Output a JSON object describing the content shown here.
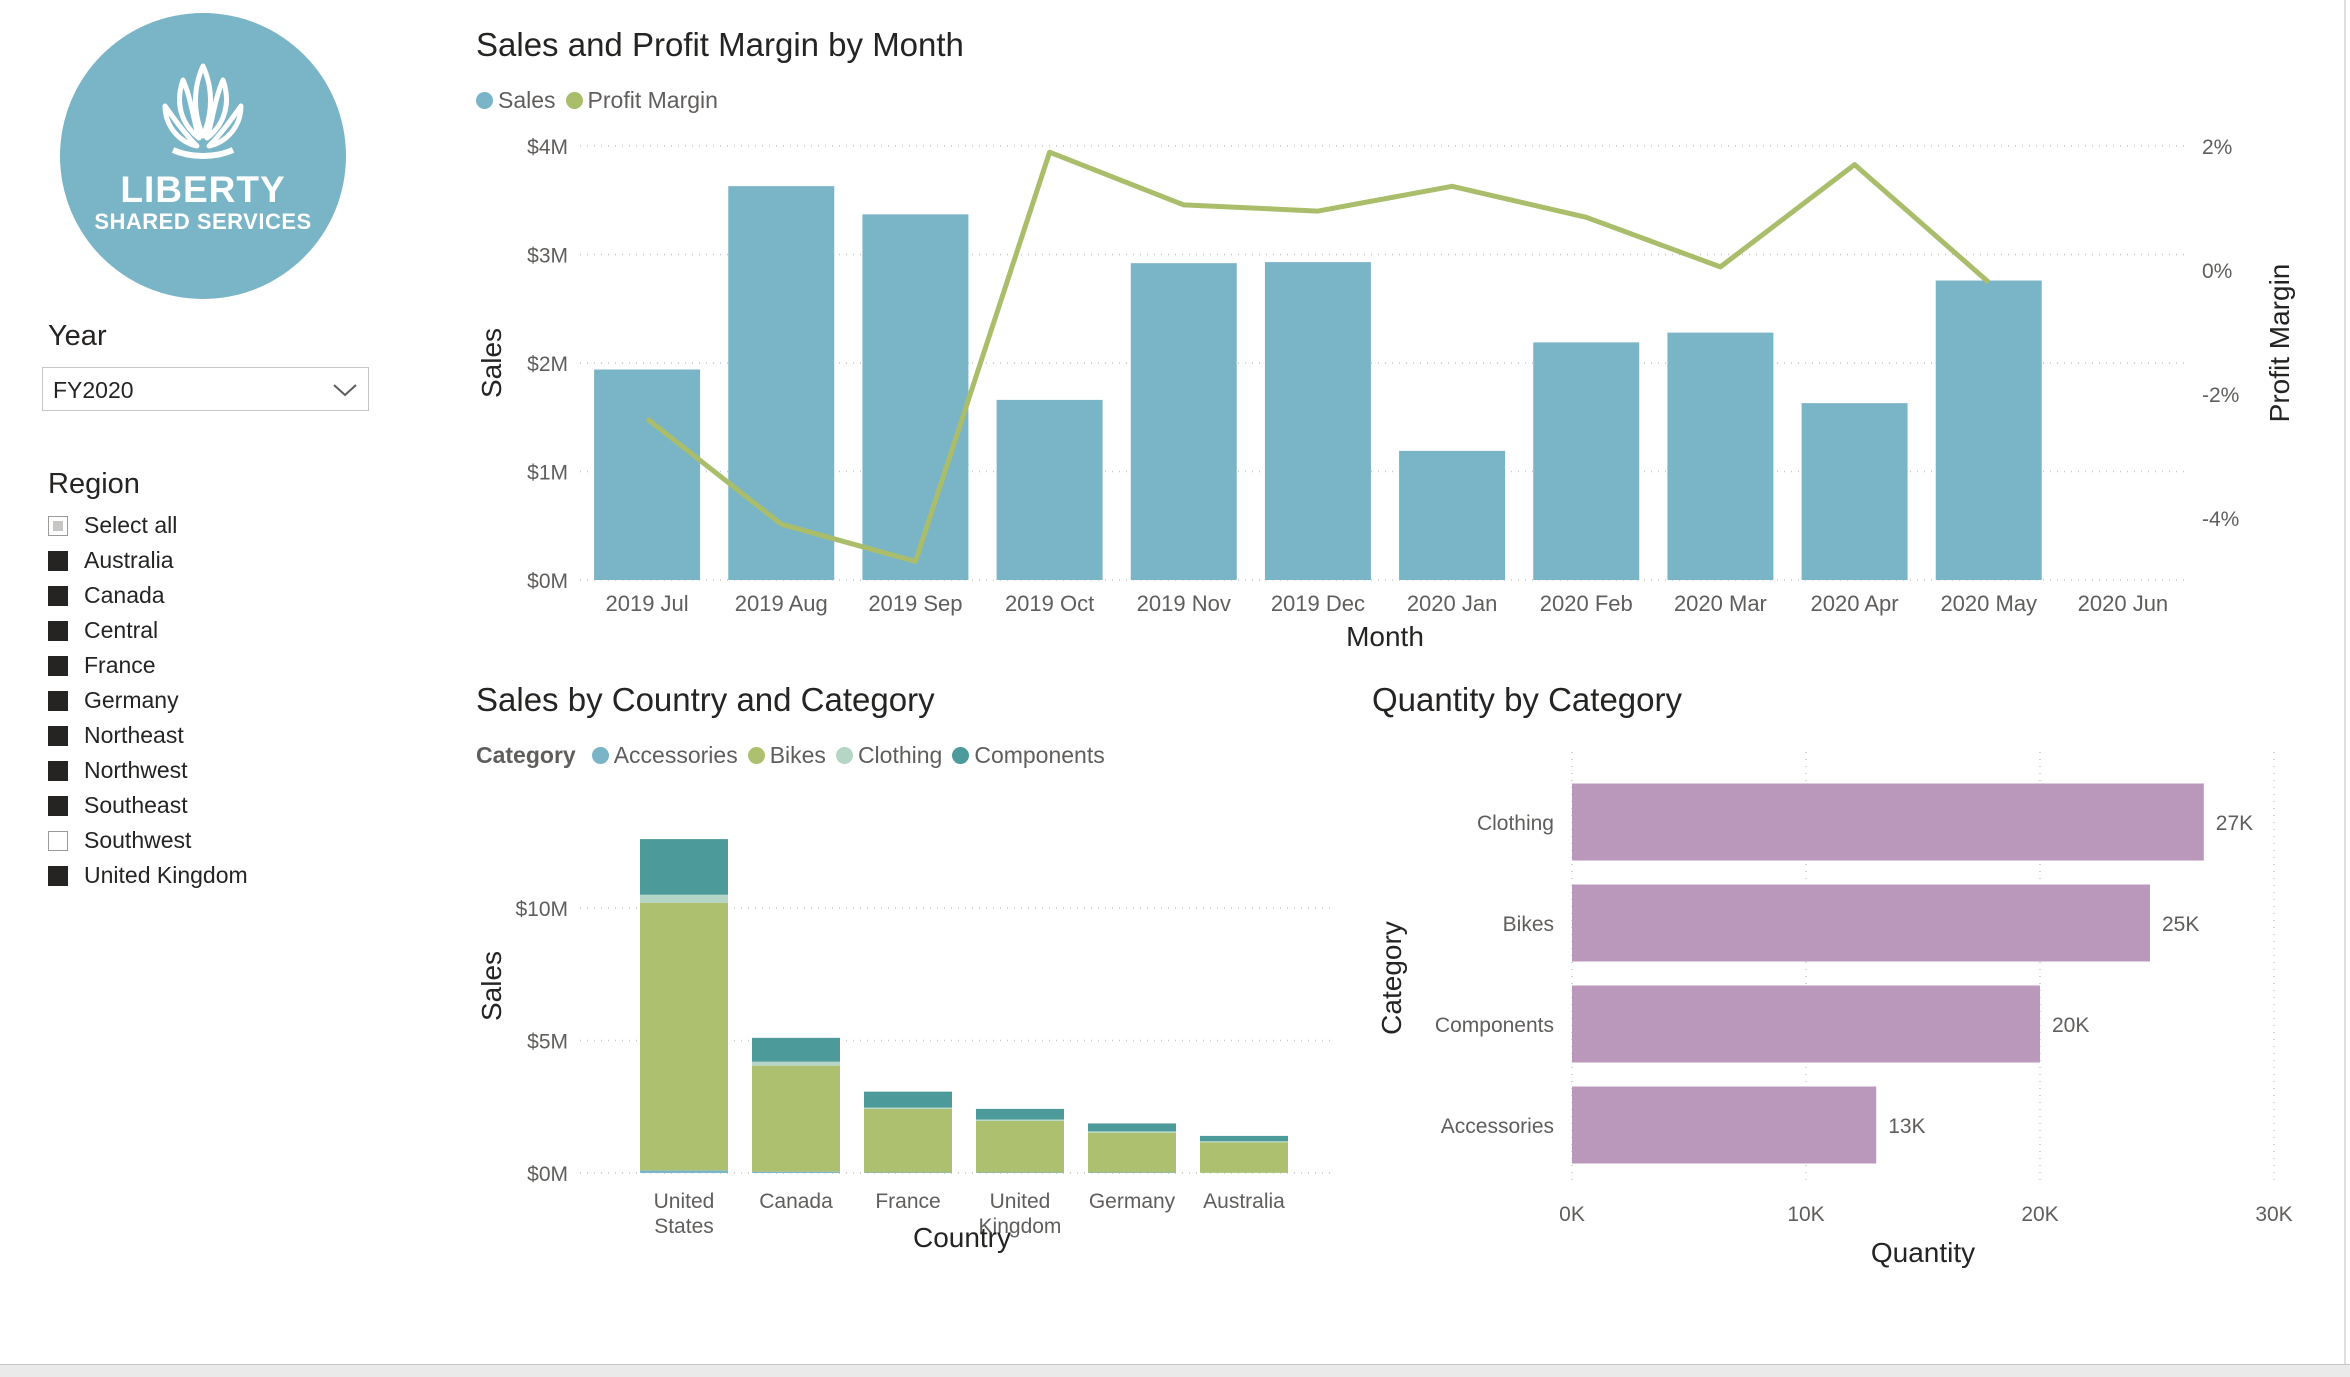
{
  "logo": {
    "line1": "LIBERTY",
    "line2": "SHARED SERVICES",
    "color": "#7ab4c7"
  },
  "year_slicer": {
    "title": "Year",
    "selected": "FY2020",
    "icon": "chevron-down-icon"
  },
  "region_slicer": {
    "title": "Region",
    "items": [
      {
        "label": "Select all",
        "state": "partial"
      },
      {
        "label": "Australia",
        "state": "checked"
      },
      {
        "label": "Canada",
        "state": "checked"
      },
      {
        "label": "Central",
        "state": "checked"
      },
      {
        "label": "France",
        "state": "checked"
      },
      {
        "label": "Germany",
        "state": "checked"
      },
      {
        "label": "Northeast",
        "state": "checked"
      },
      {
        "label": "Northwest",
        "state": "checked"
      },
      {
        "label": "Southeast",
        "state": "checked"
      },
      {
        "label": "Southwest",
        "state": "unchecked"
      },
      {
        "label": "United Kingdom",
        "state": "checked"
      }
    ]
  },
  "colors": {
    "sales": "#7ab4c7",
    "profit_margin": "#a9bd6b",
    "accessories": "#7ab4c7",
    "bikes": "#adc06f",
    "clothing": "#b5d6c7",
    "components": "#4c9a99",
    "quantity": "#b998bc"
  },
  "chart_data": [
    {
      "type": "bar",
      "title": "Sales and Profit Margin by Month",
      "xlabel": "Month",
      "ylabel": "Sales",
      "y2label": "Profit Margin",
      "legend": [
        "Sales",
        "Profit Margin"
      ],
      "categories": [
        "2019 Jul",
        "2019 Aug",
        "2019 Sep",
        "2019 Oct",
        "2019 Nov",
        "2019 Dec",
        "2020 Jan",
        "2020 Feb",
        "2020 Mar",
        "2020 Apr",
        "2020 May",
        "2020 Jun"
      ],
      "series": [
        {
          "name": "Sales",
          "type": "bar",
          "values": [
            1.94,
            3.63,
            3.37,
            1.66,
            2.92,
            2.93,
            1.19,
            2.19,
            2.28,
            1.63,
            2.76,
            null
          ]
        },
        {
          "name": "Profit Margin",
          "type": "line",
          "values": [
            -2.4,
            -4.1,
            -4.7,
            1.9,
            1.05,
            0.95,
            1.35,
            0.85,
            0.05,
            1.7,
            -0.2,
            null
          ]
        }
      ],
      "yticks": [
        "$0M",
        "$1M",
        "$2M",
        "$3M",
        "$4M"
      ],
      "ylim": [
        0,
        4
      ],
      "y2ticks": [
        "-4%",
        "-2%",
        "0%",
        "2%"
      ],
      "y2lim": [
        -5,
        2
      ],
      "grid": true,
      "legend_position": "top-left"
    },
    {
      "type": "bar",
      "stacked": true,
      "title": "Sales by Country and Category",
      "legend_title": "Category",
      "legend": [
        "Accessories",
        "Bikes",
        "Clothing",
        "Components"
      ],
      "xlabel": "Country",
      "ylabel": "Sales",
      "categories": [
        "United States",
        "Canada",
        "France",
        "United Kingdom",
        "Germany",
        "Australia"
      ],
      "series": [
        {
          "name": "Accessories",
          "values": [
            0.1,
            0.05,
            0.02,
            0.02,
            0.02,
            0.01
          ]
        },
        {
          "name": "Bikes",
          "values": [
            10.1,
            4.0,
            2.4,
            1.95,
            1.5,
            1.15
          ]
        },
        {
          "name": "Clothing",
          "values": [
            0.3,
            0.15,
            0.05,
            0.05,
            0.05,
            0.04
          ]
        },
        {
          "name": "Components",
          "values": [
            2.1,
            0.9,
            0.6,
            0.4,
            0.3,
            0.2
          ]
        }
      ],
      "yticks": [
        "$0M",
        "$5M",
        "$10M"
      ],
      "ylim": [
        0,
        13
      ],
      "grid": true,
      "legend_position": "top-left"
    },
    {
      "type": "bar",
      "orientation": "horizontal",
      "title": "Quantity by Category",
      "xlabel": "Quantity",
      "ylabel": "Category",
      "categories": [
        "Clothing",
        "Bikes",
        "Components",
        "Accessories"
      ],
      "values": [
        27000,
        24700,
        20000,
        13000
      ],
      "data_labels": [
        "27K",
        "25K",
        "20K",
        "13K"
      ],
      "xticks": [
        "0K",
        "10K",
        "20K",
        "30K"
      ],
      "xlim": [
        0,
        30000
      ],
      "grid": true
    }
  ]
}
